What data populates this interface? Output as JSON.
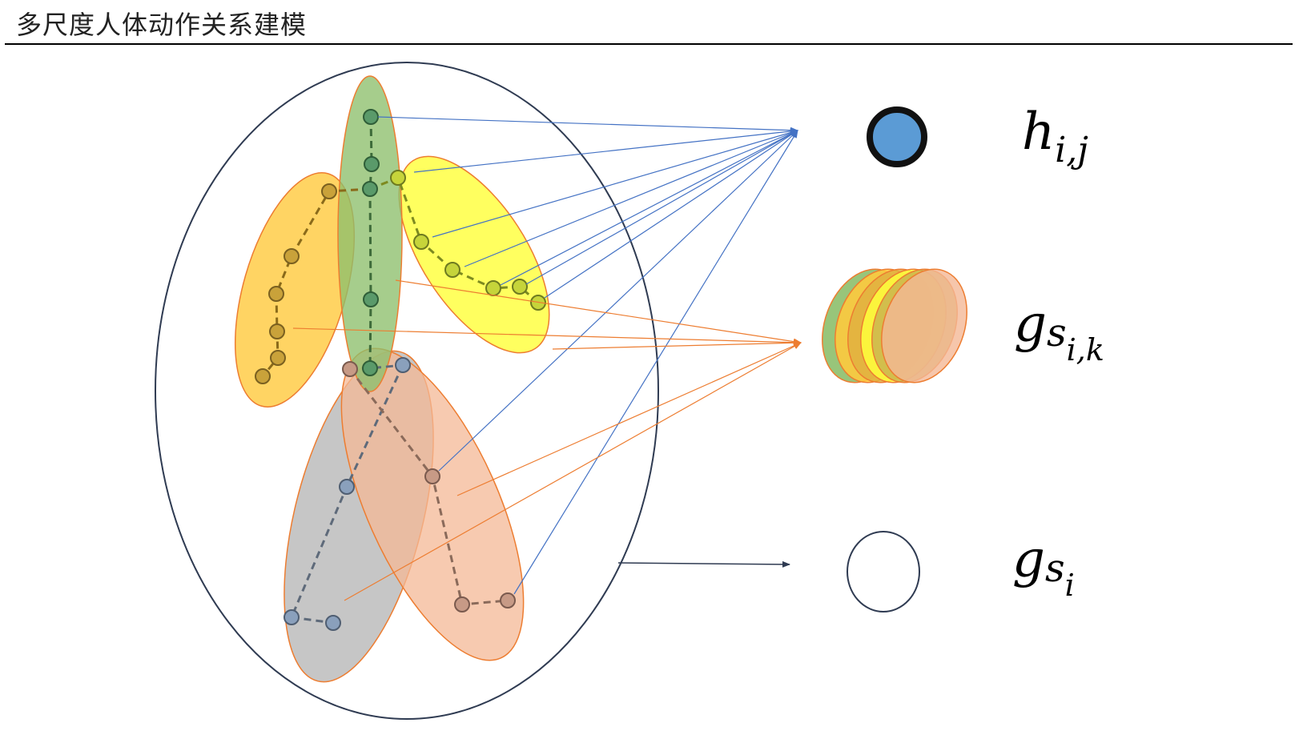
{
  "header": {
    "title": "多尺度人体动作关系建模"
  },
  "labels": {
    "joint": {
      "main": "h",
      "sub": "i,j"
    },
    "part": {
      "main": "g",
      "mid": "s",
      "sub": "i,k"
    },
    "body": {
      "main": "g",
      "mid": "s",
      "sub": "i"
    }
  },
  "colors": {
    "green_part": "#8dbf6b",
    "yellow_part": "#ffff3c",
    "orange_part": "#ffc93c",
    "gray_part": "#b8b8b8",
    "salmon_part": "#f4b896",
    "part_outline": "#ed7d31",
    "blue_arrow": "#4472c4",
    "orange_arrow": "#ed7d31",
    "joint_fill": "#5b9bd5",
    "joint_ring": "#111111",
    "body_outline": "#2f3b52"
  }
}
